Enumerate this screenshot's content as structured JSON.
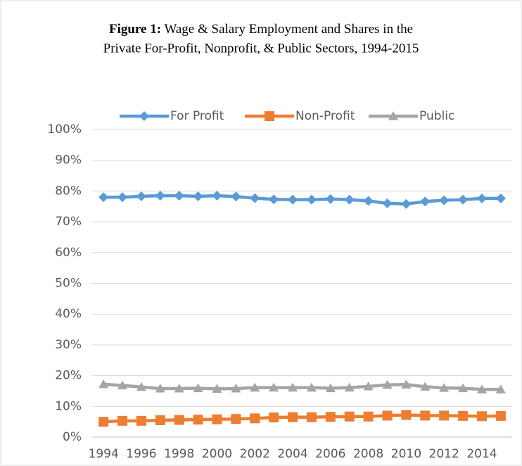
{
  "chart_data": {
    "type": "line",
    "title_prefix": "Figure 1:",
    "title_lines": [
      "Wage & Salary Employment and Shares in the",
      "Private For-Profit, Nonprofit, & Public Sectors, 1994-2015"
    ],
    "x": [
      1994,
      1995,
      1996,
      1997,
      1998,
      1999,
      2000,
      2001,
      2002,
      2003,
      2004,
      2005,
      2006,
      2007,
      2008,
      2009,
      2010,
      2011,
      2012,
      2013,
      2014,
      2015
    ],
    "xlim": [
      1993.4,
      2015.6
    ],
    "xticks": [
      1994,
      1996,
      1998,
      2000,
      2002,
      2004,
      2006,
      2008,
      2010,
      2012,
      2014
    ],
    "ylim": [
      0,
      100
    ],
    "yticks": [
      {
        "value": 0,
        "label": "0%"
      },
      {
        "value": 10,
        "label": "10%"
      },
      {
        "value": 20,
        "label": "20%"
      },
      {
        "value": 30,
        "label": "30%"
      },
      {
        "value": 40,
        "label": "40%"
      },
      {
        "value": 50,
        "label": "50%"
      },
      {
        "value": 60,
        "label": "60%"
      },
      {
        "value": 70,
        "label": "70%"
      },
      {
        "value": 80,
        "label": "80%"
      },
      {
        "value": 90,
        "label": "90%"
      },
      {
        "value": 100,
        "label": "100%"
      }
    ],
    "grid": true,
    "legend": "top",
    "series": [
      {
        "name": "For Profit",
        "color": "#5b9bd5",
        "marker": "diamond",
        "values": [
          78,
          78,
          78.3,
          78.5,
          78.5,
          78.3,
          78.5,
          78.2,
          77.7,
          77.3,
          77.2,
          77.2,
          77.4,
          77.2,
          76.8,
          76,
          75.8,
          76.6,
          77,
          77.2,
          77.6,
          77.6
        ]
      },
      {
        "name": "Non-Profit",
        "color": "#ed7d31",
        "marker": "square",
        "values": [
          5,
          5.3,
          5.3,
          5.5,
          5.6,
          5.7,
          5.8,
          5.9,
          6.1,
          6.4,
          6.5,
          6.5,
          6.6,
          6.7,
          6.7,
          7,
          7.2,
          7,
          7,
          6.9,
          6.8,
          6.9
        ]
      },
      {
        "name": "Public",
        "color": "#a5a5a5",
        "marker": "triangle",
        "values": [
          17.2,
          16.8,
          16.3,
          15.8,
          15.8,
          15.9,
          15.7,
          15.8,
          16.1,
          16.1,
          16.1,
          16.1,
          15.9,
          16.1,
          16.5,
          17,
          17.1,
          16.4,
          16,
          15.9,
          15.5,
          15.5
        ]
      }
    ]
  }
}
